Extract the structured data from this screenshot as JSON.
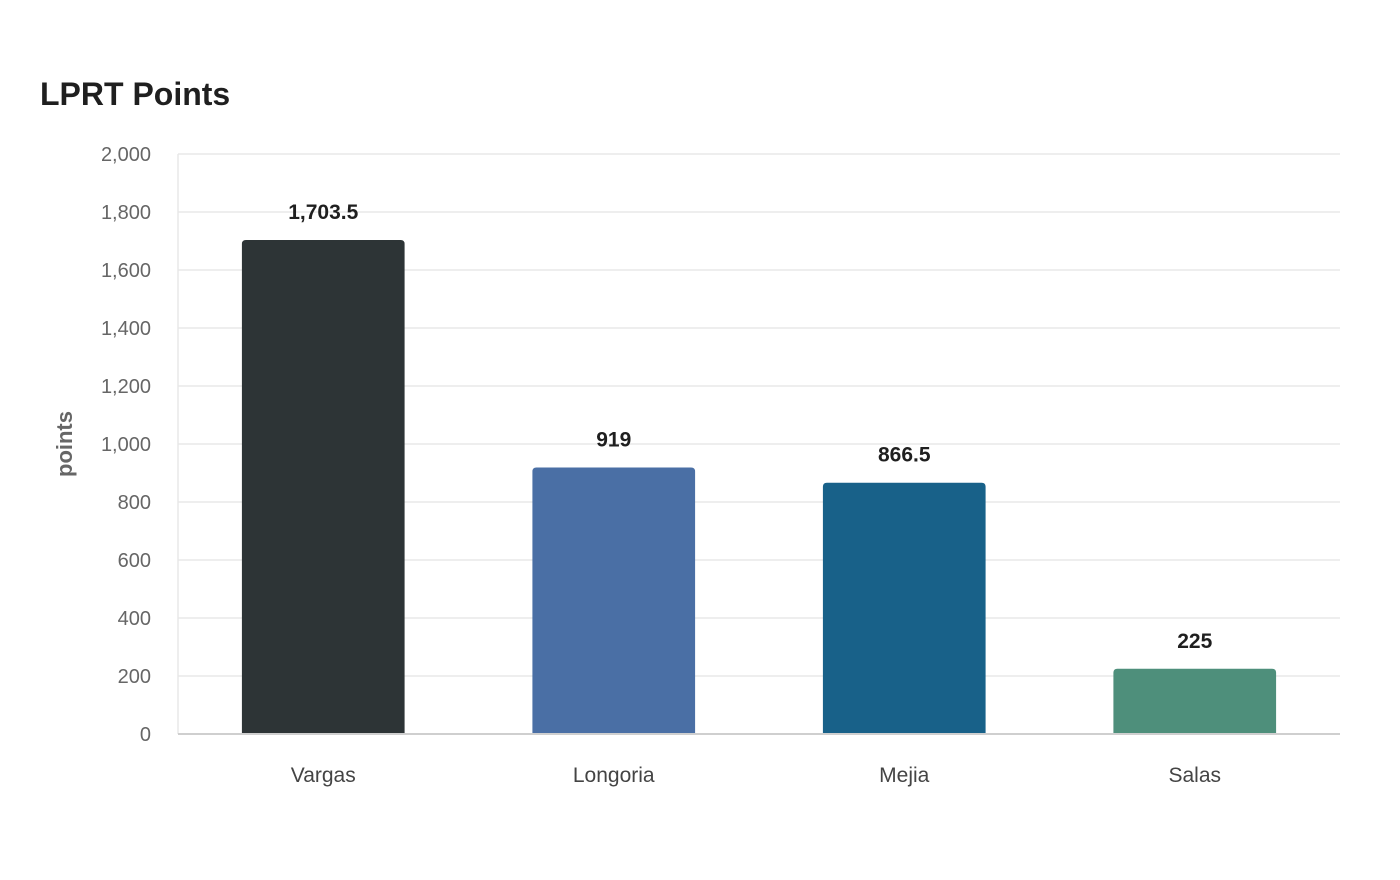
{
  "chart_data": {
    "type": "bar",
    "title": "LPRT Points",
    "xlabel": "",
    "ylabel": "points",
    "categories": [
      "Vargas",
      "Longoria",
      "Mejia",
      "Salas"
    ],
    "values": [
      1703.5,
      919,
      866.5,
      225
    ],
    "value_labels": [
      "1,703.5",
      "919",
      "866.5",
      "225"
    ],
    "colors": [
      "#2d3436",
      "#4a6fa5",
      "#186189",
      "#4e8f7b"
    ],
    "ylim": [
      0,
      2000
    ],
    "yticks": [
      0,
      200,
      400,
      600,
      800,
      1000,
      1200,
      1400,
      1600,
      1800,
      2000
    ],
    "ytick_labels": [
      "0",
      "200",
      "400",
      "600",
      "800",
      "1,000",
      "1,200",
      "1,400",
      "1,600",
      "1,800",
      "2,000"
    ],
    "grid": true,
    "legend": "none"
  }
}
